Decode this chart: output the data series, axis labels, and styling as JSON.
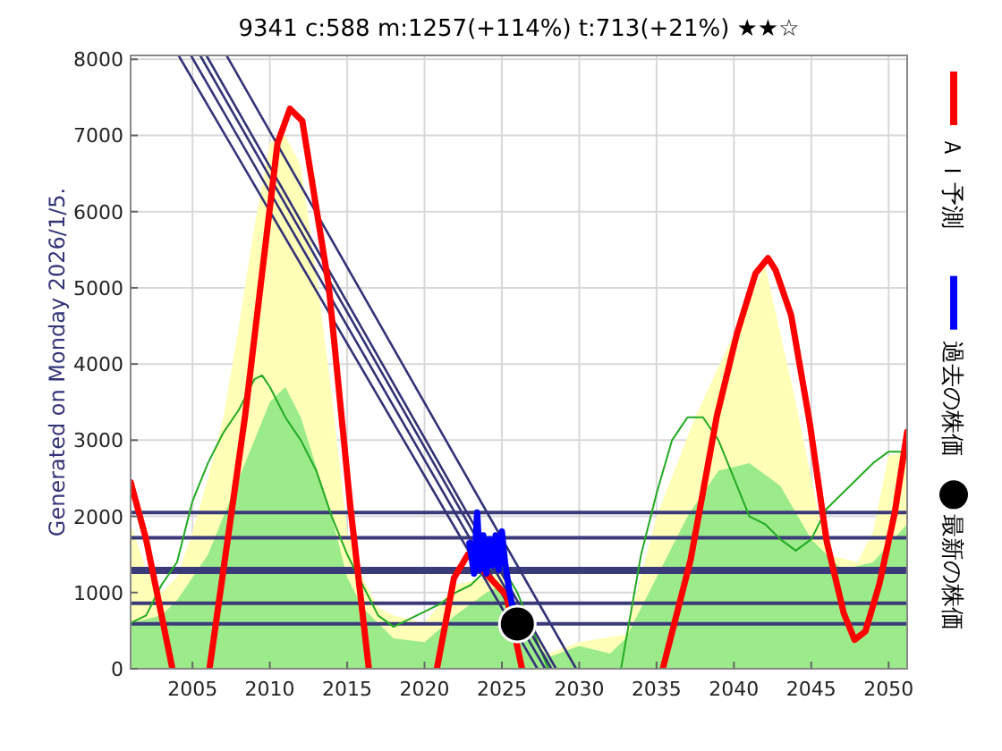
{
  "chart_data": {
    "type": "line",
    "title": "9341   c:588  m:1257(+114%)  t:713(+21%)  ★★☆",
    "ylabel": "Generated on Monday 2026/1/5.",
    "xlim": [
      2001,
      2051.2
    ],
    "ylim": [
      0,
      8050
    ],
    "xticks": [
      2005,
      2010,
      2015,
      2020,
      2025,
      2030,
      2035,
      2040,
      2045,
      2050
    ],
    "yticks": [
      0,
      1000,
      2000,
      3000,
      4000,
      5000,
      6000,
      7000,
      8000
    ],
    "grid": true,
    "legend": "right",
    "ref_lines": [
      {
        "axis": "y",
        "value": 2050,
        "color": "#3b3b7a"
      },
      {
        "axis": "y",
        "value": 1720,
        "color": "#3b3b7a"
      },
      {
        "axis": "y",
        "value": 1290,
        "color": "#3b3b7a"
      },
      {
        "axis": "y",
        "value": 860,
        "color": "#3b3b7a"
      },
      {
        "axis": "y",
        "value": 590,
        "color": "#3b3b7a"
      }
    ],
    "series": [
      {
        "type": "area",
        "color": "#ffffb8",
        "x": [
          2001,
          2002,
          2003,
          2004,
          2005,
          2006,
          2007,
          2008,
          2009,
          2010,
          2011,
          2012,
          2013,
          2014,
          2015,
          2016,
          2017,
          2018,
          2020,
          2022,
          2024,
          2025,
          2026,
          2027,
          2028,
          2030,
          2033,
          2035,
          2037.5,
          2040,
          2042,
          2044,
          2046,
          2048,
          2049,
          2050,
          2051.2
        ],
        "values": [
          1900,
          1300,
          1000,
          1200,
          1800,
          2500,
          3300,
          4500,
          5800,
          6900,
          7000,
          6600,
          5200,
          3600,
          1800,
          1200,
          800,
          700,
          600,
          1100,
          1200,
          1400,
          900,
          500,
          200,
          350,
          450,
          2000,
          3300,
          4400,
          5300,
          3500,
          1500,
          1400,
          1800,
          2800,
          2850
        ]
      },
      {
        "type": "area",
        "color": "#9ceb8a",
        "x": [
          2001,
          2003,
          2004,
          2006,
          2008,
          2010,
          2011,
          2012,
          2014,
          2015,
          2016,
          2018,
          2020,
          2022,
          2024,
          2025,
          2027,
          2028,
          2030,
          2032,
          2033,
          2035,
          2037,
          2039,
          2041,
          2043,
          2045,
          2047,
          2049,
          2051.2
        ],
        "values": [
          600,
          700,
          900,
          1500,
          2500,
          3500,
          3700,
          3300,
          2000,
          1200,
          800,
          400,
          350,
          700,
          1000,
          1100,
          400,
          150,
          300,
          200,
          400,
          1200,
          2000,
          2600,
          2700,
          2400,
          1700,
          1300,
          1400,
          1900
        ]
      },
      {
        "color": "#22aa22",
        "x": [
          2001,
          2002,
          2003,
          2004,
          2005,
          2006,
          2007,
          2008,
          2009,
          2009.5,
          2010,
          2011,
          2012,
          2013,
          2014,
          2015,
          2016,
          2017,
          2018,
          2019,
          2020,
          2021,
          2022,
          2023,
          2024,
          2025,
          2026,
          2027,
          2028,
          2032.7,
          2034,
          2035,
          2036,
          2037,
          2038,
          2039,
          2040,
          2041,
          2042,
          2043,
          2044,
          2045,
          2046,
          2047,
          2048,
          2049,
          2050,
          2051.2
        ],
        "values": [
          600,
          700,
          1100,
          1400,
          2200,
          2700,
          3100,
          3400,
          3800,
          3850,
          3700,
          3300,
          3000,
          2600,
          2000,
          1500,
          1100,
          700,
          550,
          650,
          750,
          850,
          1000,
          1100,
          1300,
          1350,
          1000,
          500,
          0,
          0,
          1500,
          2300,
          3000,
          3300,
          3300,
          3000,
          2500,
          2000,
          1900,
          1700,
          1550,
          1700,
          2100,
          2300,
          2500,
          2700,
          2850,
          2850
        ]
      },
      {
        "color": "#333377",
        "x": [
          2004.1,
          2027.3
        ],
        "values": [
          8050,
          0
        ]
      },
      {
        "color": "#333377",
        "x": [
          2004.9,
          2027.8
        ],
        "values": [
          8050,
          0
        ]
      },
      {
        "color": "#333377",
        "x": [
          2005.5,
          2028.2
        ],
        "values": [
          8050,
          0
        ]
      },
      {
        "color": "#333377",
        "x": [
          2005.9,
          2028.5
        ],
        "values": [
          8050,
          0
        ]
      },
      {
        "color": "#333377",
        "x": [
          2007.2,
          2029.8
        ],
        "values": [
          8050,
          0
        ]
      },
      {
        "name": "ＡＩ予測",
        "color": "#ff0000",
        "x": [
          2001,
          2002,
          2003,
          2003.7
        ],
        "values": [
          2450,
          1700,
          700,
          0
        ]
      },
      {
        "color": "#ff0000",
        "x": [
          2006.1,
          2008.4,
          2010.5,
          2011.3,
          2012.1,
          2013.8,
          2015.2,
          2016.4
        ],
        "values": [
          0,
          3320,
          6900,
          7350,
          7190,
          5040,
          2140,
          0
        ]
      },
      {
        "color": "#ff0000",
        "x": [
          2020.8,
          2021.9,
          2022.8,
          2025.3,
          2026.3
        ],
        "values": [
          0,
          1190,
          1500,
          960,
          0
        ]
      },
      {
        "color": "#ff0000",
        "x": [
          2035.4,
          2037.2,
          2038.9,
          2040.2,
          2041.4,
          2042.2,
          2042.7,
          2043.7,
          2044.9,
          2046.0,
          2047.1,
          2047.8,
          2048.5,
          2049.4,
          2050.4,
          2051.2
        ],
        "values": [
          0,
          1430,
          3320,
          4400,
          5190,
          5390,
          5230,
          4640,
          3230,
          1670,
          730,
          380,
          490,
          1110,
          2050,
          3110
        ]
      },
      {
        "name": "過去の株価",
        "color": "#0000ff",
        "x": [
          2022.9,
          2023.2,
          2023.4,
          2023.6,
          2023.8,
          2024.0,
          2024.2,
          2024.4,
          2024.6,
          2024.8,
          2025.0,
          2025.2,
          2025.5,
          2025.7
        ],
        "values": [
          1650,
          1250,
          2050,
          1300,
          1750,
          1250,
          1700,
          1350,
          1750,
          1300,
          1800,
          1400,
          1000,
          800
        ]
      },
      {
        "type": "scatter",
        "name": "最新の株価",
        "color": "#000000",
        "marker": "circle",
        "x": [
          2026.0
        ],
        "values": [
          588
        ]
      }
    ]
  }
}
